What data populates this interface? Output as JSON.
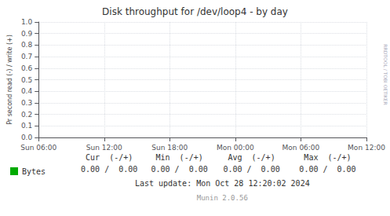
{
  "chart_data": {
    "type": "line",
    "title": "Disk throughput for /dev/loop4 - by day",
    "ylabel": "Pr second read (-) / write (+)",
    "categories": [
      "Sun 06:00",
      "Sun 12:00",
      "Sun 18:00",
      "Mon 00:00",
      "Mon 06:00",
      "Mon 12:00"
    ],
    "series": [
      {
        "name": "Bytes",
        "color": "#00aa00",
        "values": [
          null,
          null,
          null,
          null,
          null,
          null
        ]
      }
    ],
    "ylim": [
      0.0,
      1.0
    ],
    "yticks": [
      {
        "value": 0.0,
        "label": "0.0"
      },
      0.1,
      0.2,
      0.3,
      0.4,
      0.5,
      0.6,
      0.7,
      0.8,
      0.9,
      {
        "value": 1.0,
        "label": "1.0"
      }
    ],
    "grid": true,
    "legend": "bottom",
    "annotations": [
      "Cur  (-/+)",
      "Min  (-/+)",
      "Avg  (-/+)",
      "Max  (-/+)",
      "0.00 /  0.00",
      "0.00 /  0.00",
      "0.00 /  0.00",
      "0.00 /  0.00",
      "Last update: Mon Oct 28 12:20:02 2024",
      "Munin 2.0.56",
      "RRDTOOL / TOBI OETIKER"
    ]
  }
}
